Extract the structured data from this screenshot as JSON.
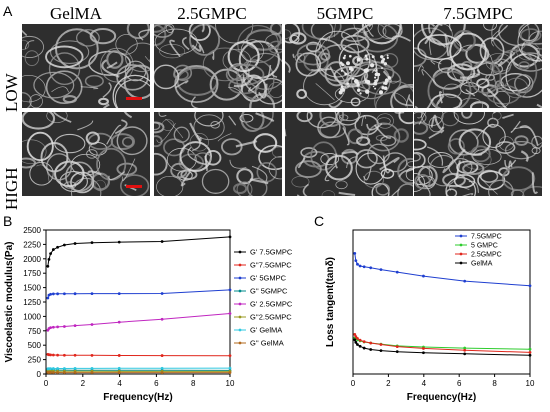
{
  "panel_a": {
    "letter": "A",
    "columns": [
      "GelMA",
      "2.5GMPC",
      "5GMPC",
      "7.5GMPC"
    ],
    "rows": [
      "LOW",
      "HIGH"
    ],
    "scalebar_color": "#e01010"
  },
  "panel_b": {
    "letter": "B"
  },
  "panel_c": {
    "letter": "C"
  },
  "chart_data": [
    {
      "type": "line",
      "xlabel": "Frequency(Hz)",
      "ylabel": "Viscoelastic modulus(Pa)",
      "xlim": [
        0,
        10
      ],
      "ylim": [
        0,
        2500
      ],
      "xticks": [
        0,
        2,
        4,
        6,
        8,
        10
      ],
      "yticks": [
        0,
        250,
        500,
        750,
        1000,
        1250,
        1500,
        1750,
        2000,
        2250,
        2500
      ],
      "legend_position": "right",
      "x": [
        0.1,
        0.16,
        0.25,
        0.4,
        0.63,
        1.0,
        1.58,
        2.5,
        3.98,
        6.31,
        10.0
      ],
      "series": [
        {
          "name": "G' 7.5GMPC",
          "color": "#000000",
          "values": [
            1870,
            1990,
            2090,
            2160,
            2200,
            2240,
            2265,
            2280,
            2290,
            2300,
            2380
          ]
        },
        {
          "name": "G''7.5GMPC",
          "color": "#e0261c",
          "values": [
            340,
            335,
            332,
            330,
            328,
            326,
            325,
            324,
            322,
            320,
            318
          ]
        },
        {
          "name": "G'   5GMPC",
          "color": "#1f3fd0",
          "values": [
            1320,
            1370,
            1385,
            1390,
            1392,
            1393,
            1394,
            1395,
            1396,
            1398,
            1460
          ]
        },
        {
          "name": "G''   5GMPC",
          "color": "#008b8b",
          "values": [
            75,
            72,
            70,
            69,
            68,
            67,
            66,
            66,
            65,
            64,
            63
          ]
        },
        {
          "name": "G' 2.5GMPC",
          "color": "#c026c0",
          "values": [
            760,
            790,
            805,
            812,
            818,
            825,
            840,
            860,
            900,
            950,
            1050
          ]
        },
        {
          "name": "G''2.5GMPC",
          "color": "#9a9a20",
          "values": [
            50,
            50,
            49,
            49,
            48,
            48,
            47,
            47,
            46,
            46,
            45
          ]
        },
        {
          "name": "G'     GelMA",
          "color": "#30c8e0",
          "values": [
            90,
            92,
            93,
            94,
            95,
            96,
            97,
            98,
            99,
            100,
            102
          ]
        },
        {
          "name": "G''    GelMA",
          "color": "#b26a1e",
          "values": [
            28,
            27,
            27,
            26,
            26,
            25,
            25,
            25,
            24,
            24,
            24
          ]
        }
      ]
    },
    {
      "type": "line",
      "xlabel": "Frequency(Hz)",
      "ylabel": "Loss tangent(tanδ)",
      "xlim": [
        0,
        10
      ],
      "ylim": [
        0,
        0.4
      ],
      "xticks": [
        0,
        2,
        4,
        6,
        8,
        10
      ],
      "legend_position": "top-right",
      "x": [
        0.1,
        0.16,
        0.25,
        0.4,
        0.63,
        1.0,
        1.58,
        2.5,
        3.98,
        6.31,
        10.0
      ],
      "series": [
        {
          "name": "7.5GMPC",
          "color": "#1f3fd0",
          "values": [
            0.335,
            0.315,
            0.305,
            0.3,
            0.298,
            0.295,
            0.29,
            0.283,
            0.272,
            0.258,
            0.245
          ]
        },
        {
          "name": "5  GMPC",
          "color": "#2ecc2e",
          "values": [
            0.1,
            0.098,
            0.095,
            0.092,
            0.089,
            0.086,
            0.083,
            0.078,
            0.075,
            0.072,
            0.069
          ]
        },
        {
          "name": "2.5GMPC",
          "color": "#e0261c",
          "values": [
            0.11,
            0.104,
            0.099,
            0.094,
            0.09,
            0.086,
            0.082,
            0.076,
            0.071,
            0.066,
            0.06
          ]
        },
        {
          "name": "GelMA",
          "color": "#000000",
          "values": [
            0.095,
            0.088,
            0.082,
            0.077,
            0.072,
            0.068,
            0.065,
            0.062,
            0.059,
            0.056,
            0.052
          ]
        }
      ]
    }
  ]
}
